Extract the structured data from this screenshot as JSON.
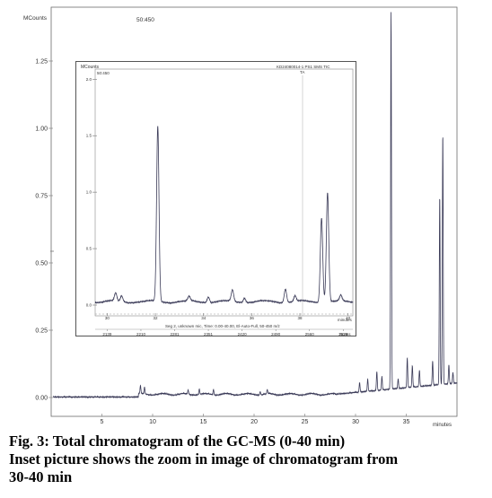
{
  "chart_data": [
    {
      "type": "line",
      "name": "total chromatogram",
      "ylabel": "MCounts",
      "xlabel": "minutes",
      "scan_label": "50:450",
      "xlim": [
        0,
        40
      ],
      "ylim": [
        0,
        1.45
      ],
      "x_ticks": [
        5,
        10,
        15,
        20,
        25,
        30,
        35
      ],
      "y_ticks": [
        {
          "value": 0.0,
          "label": "0.00"
        },
        {
          "value": 0.25,
          "label": "0.25"
        },
        {
          "value": 0.5,
          "label": "0.50"
        },
        {
          "value": 0.75,
          "label": "0.75"
        },
        {
          "value": 1.0,
          "label": "1.00"
        },
        {
          "value": 1.25,
          "label": "1.25"
        }
      ],
      "peaks": [
        {
          "x": 8.8,
          "y": 0.03
        },
        {
          "x": 9.2,
          "y": 0.025
        },
        {
          "x": 13.5,
          "y": 0.015
        },
        {
          "x": 14.6,
          "y": 0.02
        },
        {
          "x": 16.0,
          "y": 0.02
        },
        {
          "x": 20.6,
          "y": 0.012
        },
        {
          "x": 21.3,
          "y": 0.015
        },
        {
          "x": 30.4,
          "y": 0.035
        },
        {
          "x": 31.2,
          "y": 0.045
        },
        {
          "x": 32.1,
          "y": 0.07
        },
        {
          "x": 32.6,
          "y": 0.05
        },
        {
          "x": 33.5,
          "y": 1.4
        },
        {
          "x": 34.2,
          "y": 0.035
        },
        {
          "x": 35.1,
          "y": 0.11
        },
        {
          "x": 35.6,
          "y": 0.08
        },
        {
          "x": 36.3,
          "y": 0.06
        },
        {
          "x": 37.6,
          "y": 0.09
        },
        {
          "x": 38.3,
          "y": 0.7
        },
        {
          "x": 38.6,
          "y": 0.93
        },
        {
          "x": 39.2,
          "y": 0.07
        },
        {
          "x": 39.6,
          "y": 0.04
        }
      ]
    },
    {
      "type": "line",
      "name": "inset zoom 30-40 min",
      "ylabel": "MCounts",
      "xlabel": "minutes",
      "scan_label": "50:450",
      "header": "KD24080014-1 PS1 SMS TIC",
      "peak_marker_label": "TA",
      "info_line": "Seg 2, unknown mic, Time: 0.00-40.00, El-Auto-Full, 50-450 m/z",
      "scans_label": "Scans",
      "xlim": [
        29.5,
        40.2
      ],
      "ylim": [
        0,
        2.05
      ],
      "x_ticks": [
        30,
        32,
        34,
        36,
        38,
        40
      ],
      "x_tick_labels": [
        "30",
        "32",
        "34",
        "36",
        "38",
        "40"
      ],
      "scan_ticks": [
        {
          "x": 30.0,
          "label": "2139"
        },
        {
          "x": 31.4,
          "label": "2210"
        },
        {
          "x": 32.8,
          "label": "2281"
        },
        {
          "x": 34.2,
          "label": "2351"
        },
        {
          "x": 35.6,
          "label": "2420"
        },
        {
          "x": 37.0,
          "label": "2490"
        },
        {
          "x": 38.4,
          "label": "2560"
        },
        {
          "x": 39.8,
          "label": "2629"
        }
      ],
      "y_ticks": [
        {
          "value": 0.0,
          "label": "0.0"
        },
        {
          "value": 0.5,
          "label": "0.5"
        },
        {
          "value": 1.0,
          "label": "1.0"
        },
        {
          "value": 1.5,
          "label": "1.5"
        },
        {
          "value": 2.0,
          "label": "2.0"
        }
      ],
      "peaks": [
        {
          "x": 30.35,
          "y": 0.07
        },
        {
          "x": 30.6,
          "y": 0.05
        },
        {
          "x": 32.1,
          "y": 1.55
        },
        {
          "x": 33.4,
          "y": 0.04
        },
        {
          "x": 34.2,
          "y": 0.05
        },
        {
          "x": 35.2,
          "y": 0.1
        },
        {
          "x": 35.7,
          "y": 0.04
        },
        {
          "x": 37.4,
          "y": 0.12
        },
        {
          "x": 37.8,
          "y": 0.05
        },
        {
          "x": 38.9,
          "y": 0.75
        },
        {
          "x": 39.15,
          "y": 0.97
        },
        {
          "x": 39.7,
          "y": 0.05
        }
      ]
    }
  ],
  "caption": {
    "line1": "Fig. 3: Total chromatogram of the GC-MS (0-40 min)",
    "line2": "Inset picture shows the zoom in image of chromatogram from",
    "line3": "30-40 min"
  }
}
